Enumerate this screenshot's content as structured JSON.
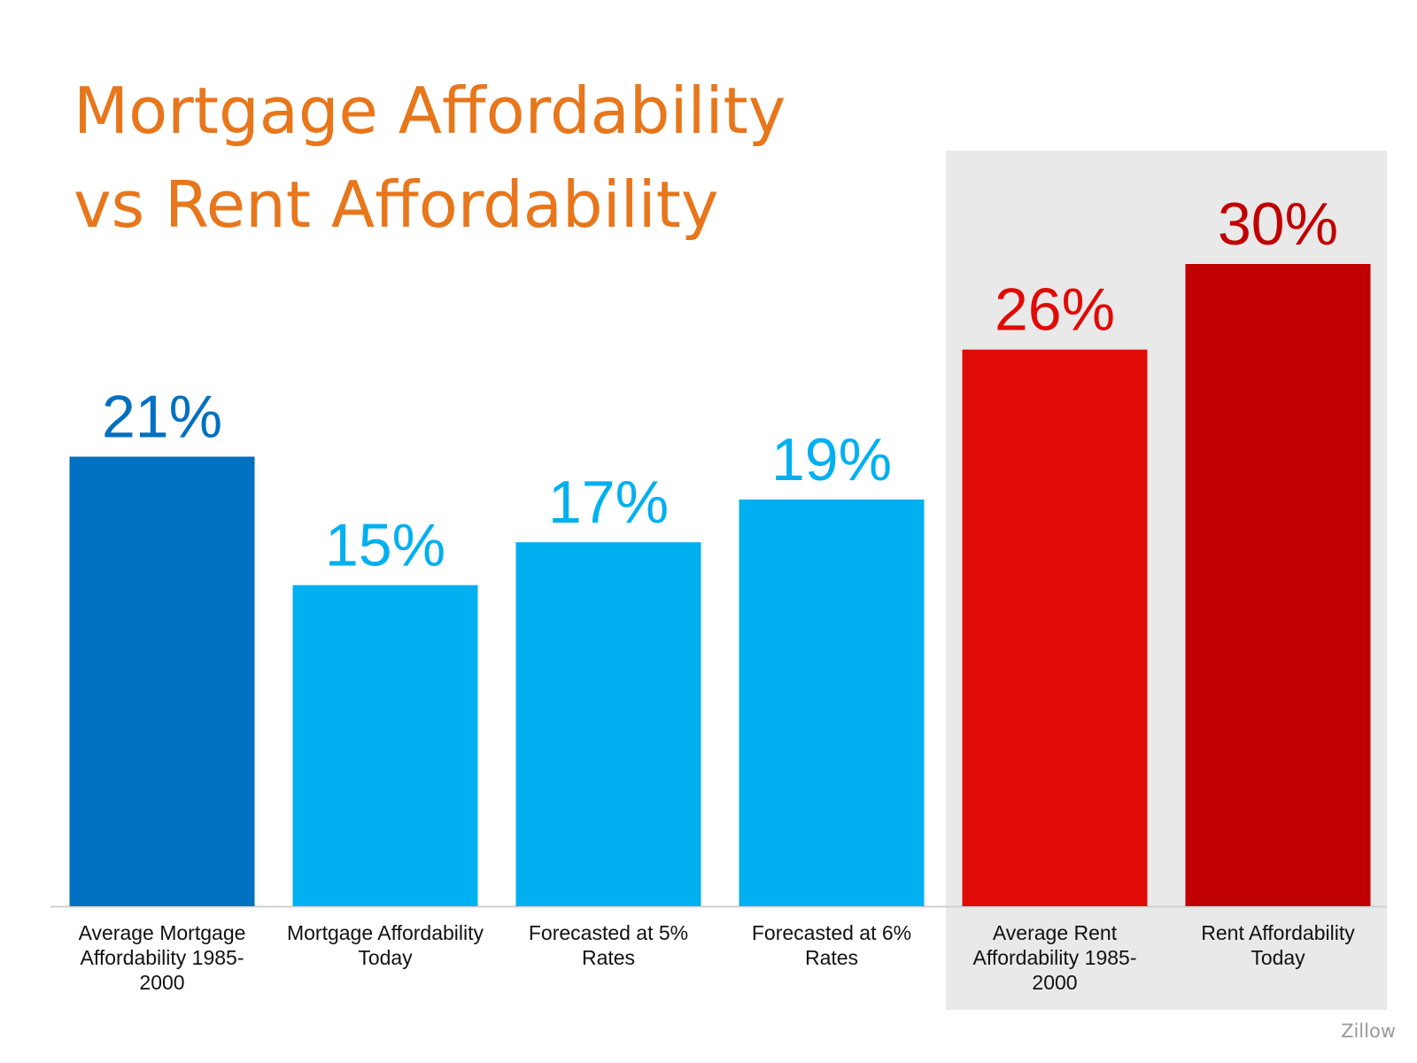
{
  "title_line1": "Mortgage Affordability",
  "title_line2": "vs Rent Affordability",
  "source": "Zillow",
  "chart_data": {
    "type": "bar",
    "title": "Mortgage Affordability vs Rent Affordability",
    "categories": [
      "Average Mortgage Affordability 1985-2000",
      "Mortgage Affordability Today",
      "Forecasted at 5% Rates",
      "Forecasted at 6% Rates",
      "Average Rent Affordability 1985-2000",
      "Rent Affordability Today"
    ],
    "category_lines": [
      [
        "Average Mortgage",
        "Affordability 1985-",
        "2000"
      ],
      [
        "Mortgage Affordability",
        "Today"
      ],
      [
        "Forecasted at 5%",
        "Rates"
      ],
      [
        "Forecasted at 6%",
        "Rates"
      ],
      [
        "Average Rent",
        "Affordability 1985-",
        "2000"
      ],
      [
        "Rent Affordability",
        "Today"
      ]
    ],
    "values": [
      21,
      15,
      17,
      19,
      26,
      30
    ],
    "value_labels": [
      "21%",
      "15%",
      "17%",
      "19%",
      "26%",
      "30%"
    ],
    "unit": "%",
    "bar_colors": [
      "#0070C0",
      "#00B0F0",
      "#00B0F0",
      "#00B0F0",
      "#E00A06",
      "#C00000"
    ],
    "label_colors": [
      "#0070C0",
      "#00B0F0",
      "#00B0F0",
      "#00B0F0",
      "#E00A06",
      "#C00000"
    ],
    "highlighted_categories": [
      "Average Rent Affordability 1985-2000",
      "Rent Affordability Today"
    ],
    "highlight_color": "#E9E9E9",
    "baseline_color": "#D0D0D0",
    "ylim": [
      0,
      30
    ],
    "grid": false,
    "legend": "none"
  }
}
